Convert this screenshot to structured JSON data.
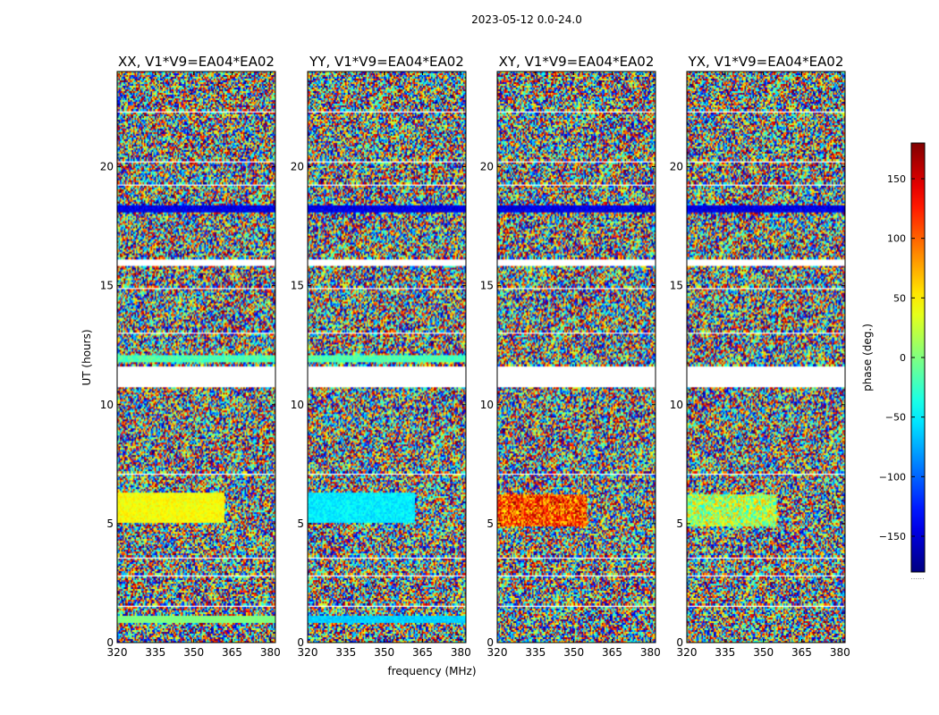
{
  "chart_data": {
    "type": "heatmap",
    "suptitle": "2023-05-12 0.0-24.0",
    "xlabel": "frequency (MHz)",
    "ylabel": "UT (hours)",
    "xlim": [
      320,
      382
    ],
    "ylim": [
      0,
      24
    ],
    "xticks": [
      320,
      335,
      350,
      365,
      380
    ],
    "yticks": [
      0,
      5,
      10,
      15,
      20
    ],
    "panels": [
      {
        "title": "XX, V1*V9=EA04*EA02",
        "character": "mixed"
      },
      {
        "title": "YY, V1*V9=EA04*EA02",
        "character": "cyan"
      },
      {
        "title": "XY, V1*V9=EA04*EA02",
        "character": "noise"
      },
      {
        "title": "YX, V1*V9=EA04*EA02",
        "character": "noise"
      }
    ],
    "flagged_ut_hours": [
      [
        0.95,
        1.0
      ],
      [
        1.5,
        1.55
      ],
      [
        2.75,
        2.85
      ],
      [
        3.55,
        3.6
      ],
      [
        4.7,
        4.75
      ],
      [
        7.05,
        7.15
      ],
      [
        7.55,
        7.6
      ],
      [
        8.45,
        8.5
      ],
      [
        9.35,
        9.4
      ],
      [
        10.7,
        11.6
      ],
      [
        12.35,
        12.4
      ],
      [
        13.0,
        13.05
      ],
      [
        13.85,
        13.9
      ],
      [
        14.85,
        14.9
      ],
      [
        15.8,
        16.15
      ],
      [
        16.85,
        16.9
      ],
      [
        17.6,
        17.65
      ],
      [
        19.2,
        19.25
      ],
      [
        20.2,
        20.25
      ],
      [
        21.05,
        21.1
      ],
      [
        22.25,
        22.35
      ],
      [
        23.0,
        23.05
      ],
      [
        23.75,
        23.8
      ]
    ],
    "colorbar": {
      "label": "phase (deg.)",
      "range": [
        -180,
        180
      ],
      "ticks": [
        150,
        100,
        50,
        0,
        -50,
        -100,
        -150
      ],
      "colormap": "jet",
      "under_label": "......"
    }
  }
}
